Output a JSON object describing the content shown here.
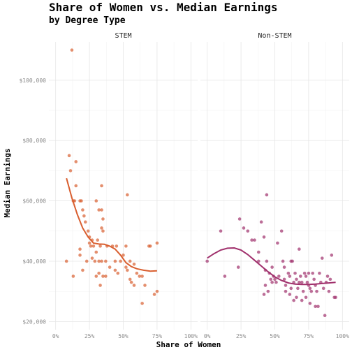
{
  "chart_data": {
    "type": "scatter",
    "title": "Share of Women vs. Median Earnings",
    "subtitle": "by Degree Type",
    "xlabel": "Share of Women",
    "ylabel": "Median Earnings",
    "xlim": [
      0,
      1
    ],
    "ylim": [
      20000,
      110000
    ],
    "x_ticks": [
      0,
      0.25,
      0.5,
      0.75,
      1
    ],
    "x_tick_labels": [
      "0%",
      "25%",
      "50%",
      "75%",
      "100%"
    ],
    "y_ticks": [
      20000,
      40000,
      60000,
      80000,
      100000
    ],
    "y_tick_labels": [
      "$20,000",
      "$40,000",
      "$60,000",
      "$80,000",
      "$100,000"
    ],
    "grid": true,
    "panels": [
      {
        "name": "STEM",
        "color": "#d95f30",
        "points": [
          [
            0.12,
            110000
          ],
          [
            0.1,
            75000
          ],
          [
            0.11,
            70000
          ],
          [
            0.15,
            73000
          ],
          [
            0.13,
            60000
          ],
          [
            0.14,
            60000
          ],
          [
            0.15,
            65000
          ],
          [
            0.18,
            60000
          ],
          [
            0.19,
            60000
          ],
          [
            0.2,
            57000
          ],
          [
            0.21,
            55000
          ],
          [
            0.22,
            53000
          ],
          [
            0.24,
            50000
          ],
          [
            0.25,
            48000
          ],
          [
            0.27,
            47000
          ],
          [
            0.25,
            46000
          ],
          [
            0.26,
            45000
          ],
          [
            0.28,
            45000
          ],
          [
            0.3,
            60000
          ],
          [
            0.32,
            57000
          ],
          [
            0.34,
            57000
          ],
          [
            0.35,
            54000
          ],
          [
            0.34,
            51000
          ],
          [
            0.35,
            50000
          ],
          [
            0.34,
            65000
          ],
          [
            0.31,
            47000
          ],
          [
            0.3,
            43000
          ],
          [
            0.33,
            45000
          ],
          [
            0.38,
            45000
          ],
          [
            0.42,
            45000
          ],
          [
            0.45,
            45000
          ],
          [
            0.48,
            40000
          ],
          [
            0.52,
            45000
          ],
          [
            0.55,
            40000
          ],
          [
            0.58,
            39000
          ],
          [
            0.08,
            40000
          ],
          [
            0.13,
            35000
          ],
          [
            0.18,
            44000
          ],
          [
            0.18,
            42000
          ],
          [
            0.2,
            37000
          ],
          [
            0.23,
            40000
          ],
          [
            0.27,
            41000
          ],
          [
            0.29,
            40000
          ],
          [
            0.32,
            40000
          ],
          [
            0.34,
            40000
          ],
          [
            0.37,
            40000
          ],
          [
            0.32,
            36000
          ],
          [
            0.35,
            35000
          ],
          [
            0.37,
            35000
          ],
          [
            0.4,
            38000
          ],
          [
            0.44,
            40000
          ],
          [
            0.44,
            37000
          ],
          [
            0.46,
            36000
          ],
          [
            0.5,
            42000
          ],
          [
            0.52,
            38000
          ],
          [
            0.53,
            37000
          ],
          [
            0.55,
            34000
          ],
          [
            0.56,
            33000
          ],
          [
            0.58,
            32000
          ],
          [
            0.6,
            36000
          ],
          [
            0.62,
            35000
          ],
          [
            0.64,
            35000
          ],
          [
            0.66,
            32000
          ],
          [
            0.69,
            45000
          ],
          [
            0.7,
            45000
          ],
          [
            0.73,
            29000
          ],
          [
            0.75,
            30000
          ],
          [
            0.75,
            46000
          ],
          [
            0.64,
            26000
          ],
          [
            0.53,
            62000
          ],
          [
            0.33,
            32000
          ],
          [
            0.3,
            35000
          ]
        ],
        "trend": [
          [
            0.08,
            67500
          ],
          [
            0.12,
            61000
          ],
          [
            0.16,
            55500
          ],
          [
            0.2,
            51000
          ],
          [
            0.24,
            48000
          ],
          [
            0.28,
            46000
          ],
          [
            0.32,
            45700
          ],
          [
            0.36,
            45600
          ],
          [
            0.4,
            45000
          ],
          [
            0.44,
            44000
          ],
          [
            0.48,
            42000
          ],
          [
            0.52,
            39500
          ],
          [
            0.56,
            38200
          ],
          [
            0.6,
            37500
          ],
          [
            0.65,
            37000
          ],
          [
            0.7,
            36700
          ],
          [
            0.75,
            36800
          ]
        ]
      },
      {
        "name": "Non-STEM",
        "color": "#a0306c",
        "points": [
          [
            0.0,
            40000
          ],
          [
            0.1,
            50000
          ],
          [
            0.13,
            35000
          ],
          [
            0.23,
            38000
          ],
          [
            0.24,
            54000
          ],
          [
            0.27,
            51000
          ],
          [
            0.3,
            50000
          ],
          [
            0.33,
            47000
          ],
          [
            0.35,
            47000
          ],
          [
            0.38,
            43000
          ],
          [
            0.38,
            40000
          ],
          [
            0.4,
            53000
          ],
          [
            0.42,
            48000
          ],
          [
            0.44,
            62000
          ],
          [
            0.44,
            40000
          ],
          [
            0.43,
            37000
          ],
          [
            0.43,
            32000
          ],
          [
            0.45,
            30000
          ],
          [
            0.46,
            36000
          ],
          [
            0.47,
            34000
          ],
          [
            0.48,
            38000
          ],
          [
            0.49,
            35000
          ],
          [
            0.5,
            34000
          ],
          [
            0.51,
            33000
          ],
          [
            0.52,
            46000
          ],
          [
            0.55,
            50000
          ],
          [
            0.56,
            40000
          ],
          [
            0.57,
            38000
          ],
          [
            0.57,
            34000
          ],
          [
            0.58,
            32000
          ],
          [
            0.6,
            36000
          ],
          [
            0.61,
            35000
          ],
          [
            0.61,
            29000
          ],
          [
            0.62,
            40000
          ],
          [
            0.63,
            40000
          ],
          [
            0.64,
            33000
          ],
          [
            0.64,
            27000
          ],
          [
            0.65,
            36000
          ],
          [
            0.66,
            34000
          ],
          [
            0.67,
            31000
          ],
          [
            0.68,
            44000
          ],
          [
            0.69,
            35000
          ],
          [
            0.7,
            33000
          ],
          [
            0.71,
            30000
          ],
          [
            0.72,
            36000
          ],
          [
            0.73,
            35000
          ],
          [
            0.73,
            28000
          ],
          [
            0.74,
            33000
          ],
          [
            0.75,
            32000
          ],
          [
            0.75,
            36000
          ],
          [
            0.76,
            31000
          ],
          [
            0.77,
            30000
          ],
          [
            0.78,
            36000
          ],
          [
            0.79,
            34000
          ],
          [
            0.8,
            25000
          ],
          [
            0.81,
            30000
          ],
          [
            0.82,
            25000
          ],
          [
            0.83,
            36000
          ],
          [
            0.84,
            33000
          ],
          [
            0.85,
            41000
          ],
          [
            0.86,
            31000
          ],
          [
            0.87,
            22000
          ],
          [
            0.89,
            35000
          ],
          [
            0.9,
            30000
          ],
          [
            0.91,
            34000
          ],
          [
            0.92,
            42000
          ],
          [
            0.94,
            28000
          ],
          [
            0.95,
            28000
          ],
          [
            0.88,
            33000
          ],
          [
            0.7,
            27000
          ],
          [
            0.66,
            28000
          ],
          [
            0.53,
            35000
          ],
          [
            0.48,
            33000
          ],
          [
            0.76,
            26000
          ],
          [
            0.8,
            32000
          ],
          [
            0.62,
            31000
          ],
          [
            0.42,
            29000
          ],
          [
            0.58,
            30000
          ],
          [
            0.68,
            33000
          ]
        ],
        "trend": [
          [
            0.0,
            41000
          ],
          [
            0.05,
            42500
          ],
          [
            0.1,
            43700
          ],
          [
            0.15,
            44300
          ],
          [
            0.2,
            44400
          ],
          [
            0.25,
            43700
          ],
          [
            0.3,
            42200
          ],
          [
            0.35,
            40300
          ],
          [
            0.4,
            38400
          ],
          [
            0.45,
            36500
          ],
          [
            0.5,
            34800
          ],
          [
            0.55,
            33600
          ],
          [
            0.6,
            32800
          ],
          [
            0.65,
            32400
          ],
          [
            0.7,
            32300
          ],
          [
            0.75,
            32300
          ],
          [
            0.8,
            32400
          ],
          [
            0.85,
            32600
          ],
          [
            0.9,
            32800
          ],
          [
            0.95,
            33000
          ]
        ]
      }
    ]
  }
}
